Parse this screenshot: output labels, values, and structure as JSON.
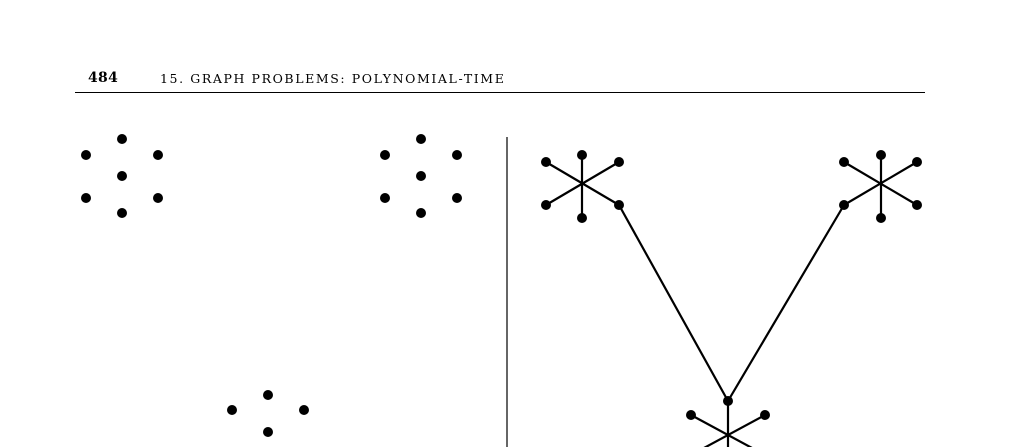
{
  "header": {
    "page_number": "484",
    "chapter_title": "15. GRAPH PROBLEMS: POLYNOMIAL-TIME"
  },
  "figure": {
    "left_panel": {
      "description_nodes": "isolated vertex clusters (no edges)",
      "clusters": 3
    },
    "right_panel": {
      "description_nodes": "star graphs joined by edges into a tree",
      "stars": 3
    },
    "colors": {
      "ink": "#000000",
      "background": "#ffffff"
    }
  }
}
